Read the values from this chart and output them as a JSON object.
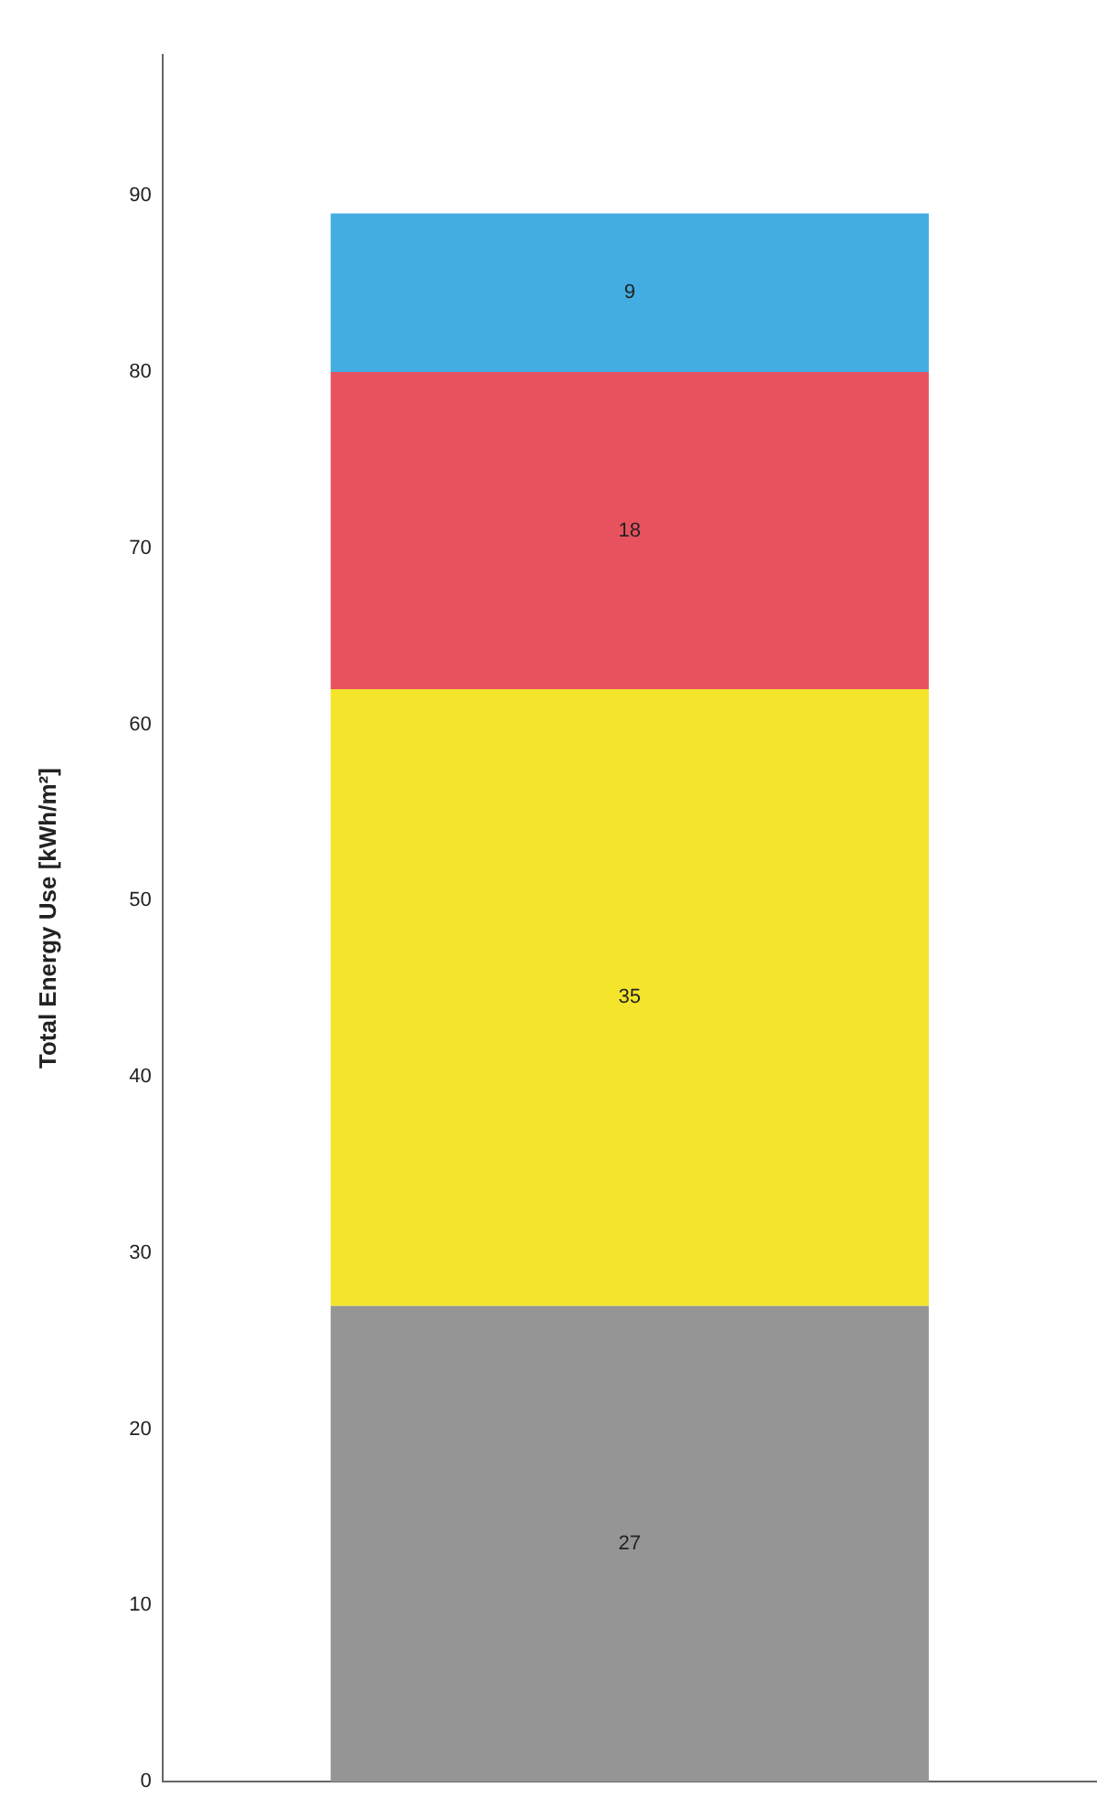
{
  "chart_data": {
    "type": "bar",
    "stacked": true,
    "ylabel": "Total Energy Use [kWh/m²]",
    "categories": [
      null
    ],
    "series": [
      {
        "color": "#959595",
        "values": [
          27
        ]
      },
      {
        "color": "#f4e42c",
        "values": [
          35
        ]
      },
      {
        "color": "#e8525f",
        "values": [
          18
        ]
      },
      {
        "color": "#43ade2",
        "values": [
          9
        ]
      }
    ],
    "data_labels": true,
    "ylim": [
      0,
      98
    ],
    "yticks": [
      0,
      10,
      20,
      30,
      40,
      50,
      60,
      70,
      80,
      90
    ],
    "grid": false,
    "legend": false
  }
}
